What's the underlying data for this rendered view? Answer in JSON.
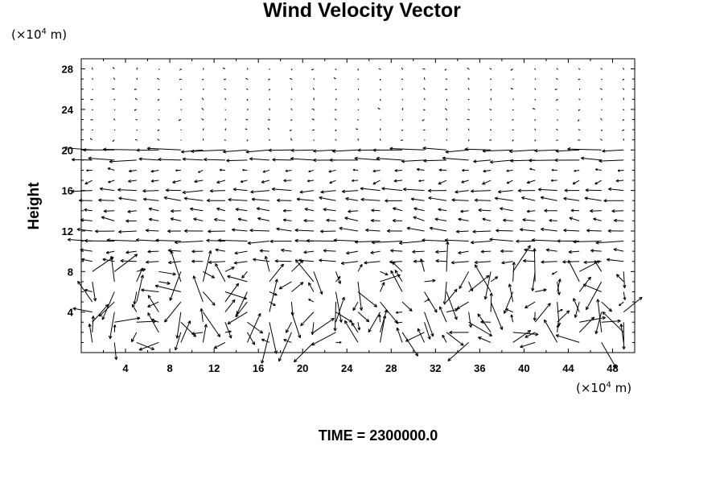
{
  "chart_data": {
    "type": "vector_field",
    "title": "Wind Velocity Vector",
    "ylabel": "Height",
    "xunit_base": "(×10",
    "xunit_exp": "4",
    "xunit_tail": " m)",
    "yunit_base": "(×10",
    "yunit_exp": "4",
    "yunit_tail": " m)",
    "xlim": [
      0,
      50
    ],
    "ylim": [
      0,
      29
    ],
    "xticks": [
      4,
      8,
      12,
      16,
      20,
      24,
      28,
      32,
      36,
      40,
      44,
      48
    ],
    "yticks": [
      4,
      8,
      12,
      16,
      20,
      24,
      28
    ],
    "grid": false,
    "time_label": "TIME = 2300000.0",
    "vectors": {
      "x_start": 1,
      "x_step": 2,
      "x_count": 25,
      "y_start": 1,
      "y_step": 1,
      "y_count": 28,
      "bands": [
        {
          "y": 20,
          "u": -3.2,
          "v": 0
        },
        {
          "y": 19,
          "u": -2.6,
          "v": 0
        },
        {
          "y": 11,
          "u": -2.8,
          "v": 0
        },
        {
          "y": 16,
          "u": -2.0,
          "v": 0
        },
        {
          "y": 15,
          "u": -1.8,
          "v": 0.2
        },
        {
          "y": 12,
          "u": -1.8,
          "v": 0.1
        },
        {
          "y": 9,
          "u": -1.6,
          "v": 0
        },
        {
          "y": 10,
          "u": -1.2,
          "v": 0
        },
        {
          "y": 13,
          "u": -1.2,
          "v": 0.2
        },
        {
          "y": 14,
          "u": -1.2,
          "v": 0.1
        },
        {
          "y": 17,
          "u": -0.8,
          "v": -0.2
        },
        {
          "y": 18,
          "u": -0.7,
          "v": 0
        }
      ]
    }
  }
}
